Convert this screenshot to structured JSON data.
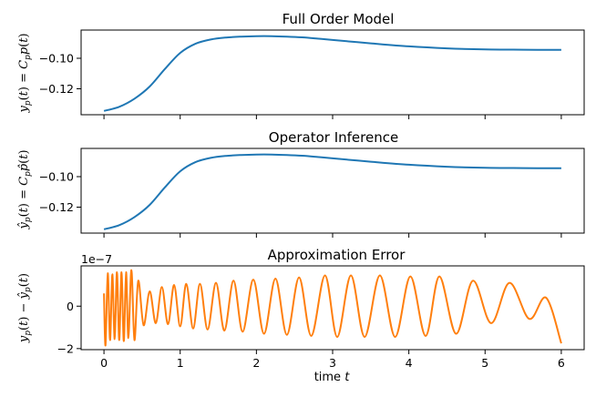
{
  "chart_data": [
    {
      "type": "line",
      "title": "Full Order Model",
      "ylabel": "y_p(t) = C_p p(t)",
      "xlim": [
        -0.3,
        6.3
      ],
      "ylim": [
        -0.137,
        -0.0815
      ],
      "yticks": [
        -0.12,
        -0.1
      ],
      "ytick_labels": [
        "−0.12",
        "−0.10"
      ],
      "xticks_labels_shown": false,
      "grid": false,
      "series": [
        {
          "color": "#1f77b4",
          "x": [
            0,
            0.2,
            0.4,
            0.6,
            0.8,
            1.0,
            1.2,
            1.4,
            1.6,
            1.8,
            2.0,
            2.2,
            2.4,
            2.6,
            2.8,
            3.0,
            3.5,
            4.0,
            4.5,
            5.0,
            5.5,
            6.0
          ],
          "y": [
            -0.1345,
            -0.1318,
            -0.1265,
            -0.1185,
            -0.107,
            -0.0965,
            -0.0905,
            -0.0877,
            -0.0864,
            -0.0858,
            -0.0855,
            -0.0855,
            -0.0858,
            -0.0863,
            -0.0871,
            -0.088,
            -0.0902,
            -0.0922,
            -0.0935,
            -0.0942,
            -0.0944,
            -0.0945
          ]
        }
      ]
    },
    {
      "type": "line",
      "title": "Operator Inference",
      "ylabel": "ŷ_p(t) = C_p p̂(t)",
      "xlim": [
        -0.3,
        6.3
      ],
      "ylim": [
        -0.137,
        -0.0815
      ],
      "yticks": [
        -0.12,
        -0.1
      ],
      "ytick_labels": [
        "−0.12",
        "−0.10"
      ],
      "xticks_labels_shown": false,
      "grid": false,
      "series": [
        {
          "color": "#1f77b4",
          "x": [
            0,
            0.2,
            0.4,
            0.6,
            0.8,
            1.0,
            1.2,
            1.4,
            1.6,
            1.8,
            2.0,
            2.2,
            2.4,
            2.6,
            2.8,
            3.0,
            3.5,
            4.0,
            4.5,
            5.0,
            5.5,
            6.0
          ],
          "y": [
            -0.1345,
            -0.1318,
            -0.1265,
            -0.1185,
            -0.107,
            -0.0965,
            -0.0905,
            -0.0877,
            -0.0864,
            -0.0858,
            -0.0855,
            -0.0855,
            -0.0858,
            -0.0863,
            -0.0871,
            -0.088,
            -0.0902,
            -0.0922,
            -0.0935,
            -0.0942,
            -0.0944,
            -0.0945
          ]
        }
      ]
    },
    {
      "type": "line",
      "title": "Approximation Error",
      "ylabel": "y_p(t) − ŷ_p(t)",
      "xlabel": "time t",
      "offset_text": "1e−7",
      "xlim": [
        -0.3,
        6.3
      ],
      "ylim": [
        -2.05,
        1.9
      ],
      "yticks": [
        -2,
        0
      ],
      "ytick_labels": [
        "−2",
        "0"
      ],
      "xticks": [
        0,
        1,
        2,
        3,
        4,
        5,
        6
      ],
      "xtick_labels": [
        "0",
        "1",
        "2",
        "3",
        "4",
        "5",
        "6"
      ],
      "grid": false,
      "series": [
        {
          "color": "#ff7f0e",
          "description_of_shape": "oscillation in units of 1e-7",
          "x": [
            0.0,
            0.02,
            0.05,
            0.08,
            0.11,
            0.14,
            0.17,
            0.2,
            0.23,
            0.26,
            0.29,
            0.32,
            0.36,
            0.4,
            0.45,
            0.52,
            0.6,
            0.68,
            0.76,
            0.84,
            0.92,
            1.0,
            1.08,
            1.17,
            1.26,
            1.36,
            1.47,
            1.58,
            1.7,
            1.82,
            1.96,
            2.1,
            2.25,
            2.4,
            2.56,
            2.72,
            2.9,
            3.06,
            3.24,
            3.42,
            3.62,
            3.82,
            4.02,
            4.22,
            4.4,
            4.62,
            4.84,
            5.08,
            5.32,
            5.58,
            5.8,
            6.0
          ],
          "y": [
            0.6,
            -1.85,
            1.55,
            -1.6,
            1.5,
            -1.55,
            1.6,
            -1.6,
            1.6,
            -1.65,
            1.6,
            -1.5,
            1.7,
            -1.6,
            1.2,
            -0.9,
            0.7,
            -0.8,
            0.9,
            -0.85,
            1.0,
            -0.95,
            1.05,
            -1.05,
            1.05,
            -1.1,
            1.1,
            -1.15,
            1.2,
            -1.2,
            1.25,
            -1.3,
            1.3,
            -1.35,
            1.35,
            -1.4,
            1.45,
            -1.45,
            1.45,
            -1.45,
            1.45,
            -1.45,
            1.4,
            -1.4,
            1.4,
            -1.3,
            1.2,
            -0.8,
            1.1,
            -0.6,
            0.4,
            -1.75
          ]
        }
      ]
    }
  ]
}
